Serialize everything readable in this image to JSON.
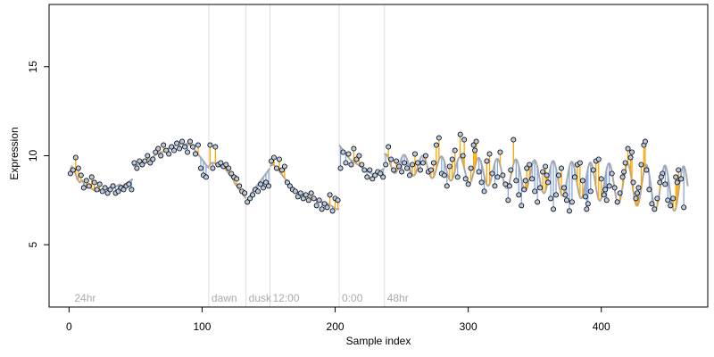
{
  "chart_data": {
    "type": "scatter",
    "title": "",
    "xlabel": "Sample index",
    "ylabel": "Expression",
    "xlim": [
      -15,
      480
    ],
    "ylim": [
      1.5,
      18.5
    ],
    "xticks": [
      0,
      100,
      200,
      300,
      400
    ],
    "yticks": [
      5,
      10,
      15
    ],
    "grid": false,
    "legend": "none",
    "colors": {
      "points_fill": "#b8c8e0",
      "points_stroke": "#000000",
      "fit_line": "#aaaaaa",
      "residual_positive": "#ffa500",
      "residual_negative": "#87a8e0",
      "markers": "#dddddd",
      "marker_text": "#aaaaaa"
    },
    "markers": [
      {
        "x": 2,
        "label": "24hr"
      },
      {
        "x": 105,
        "label": "dawn"
      },
      {
        "x": 133,
        "label": "dusk"
      },
      {
        "x": 151,
        "label": "12:00"
      },
      {
        "x": 203,
        "label": "0:00"
      },
      {
        "x": 237,
        "label": "48hr"
      }
    ],
    "segments": [
      {
        "x": [
          0,
          48
        ],
        "fit": [
          9.0,
          9.4,
          9.2,
          8.7,
          8.5,
          8.6,
          8.3,
          8.2,
          8.2,
          8.1,
          8.0,
          8.1,
          8.0,
          8.1,
          8.2,
          8.1,
          8.3,
          8.2,
          8.3,
          8.4,
          8.3,
          8.4,
          8.5,
          8.6,
          8.7
        ]
      },
      {
        "x": [
          48,
          105
        ],
        "fit": [
          9.4,
          9.5,
          9.5,
          9.6,
          9.7,
          9.8,
          9.8,
          9.9,
          10.0,
          10.1,
          10.2,
          10.2,
          10.3,
          10.4,
          10.5,
          10.5,
          10.6,
          10.6,
          10.7,
          10.6,
          10.7,
          10.6,
          10.5,
          10.3,
          10.1,
          9.9,
          9.7,
          9.5,
          9.3
        ]
      },
      {
        "x": [
          105,
          133
        ],
        "fit": [
          9.4,
          9.6,
          9.6,
          9.5,
          9.4,
          9.4,
          9.3,
          9.1,
          8.9,
          8.7,
          8.4,
          8.2,
          8.0,
          7.8,
          7.6
        ]
      },
      {
        "x": [
          133,
          151
        ],
        "fit": [
          7.4,
          7.6,
          7.9,
          8.1,
          8.3,
          8.5,
          8.7,
          8.9,
          9.1,
          9.3
        ]
      },
      {
        "x": [
          151,
          203
        ],
        "fit": [
          9.4,
          9.5,
          9.4,
          9.2,
          9.0,
          8.8,
          8.6,
          8.4,
          8.2,
          8.0,
          7.9,
          7.8,
          7.8,
          7.7,
          7.7,
          7.6,
          7.6,
          7.5,
          7.4,
          7.4,
          7.3,
          7.3,
          7.2,
          7.1,
          7.0,
          7.0
        ]
      },
      {
        "x": [
          203,
          237
        ],
        "fit": [
          10.6,
          10.4,
          10.2,
          10.0,
          9.8,
          9.7,
          9.6,
          9.5,
          9.4,
          9.3,
          9.2,
          9.1,
          9.0,
          9.0,
          9.0,
          9.1,
          9.2,
          9.3
        ]
      }
    ],
    "osc_fit": {
      "x_start": 237,
      "x_end": 465,
      "mean_start": 9.6,
      "mean_end": 8.1,
      "amp_start": 0.5,
      "amp_end": 1.3,
      "period": 14,
      "phase": 1.2
    },
    "points": [
      [
        1,
        9.0
      ],
      [
        3,
        9.2
      ],
      [
        5,
        9.9
      ],
      [
        7,
        9.3
      ],
      [
        9,
        8.9
      ],
      [
        11,
        8.2
      ],
      [
        13,
        8.6
      ],
      [
        15,
        8.3
      ],
      [
        17,
        8.8
      ],
      [
        19,
        8.5
      ],
      [
        21,
        8.1
      ],
      [
        23,
        8.4
      ],
      [
        25,
        8.0
      ],
      [
        27,
        8.2
      ],
      [
        29,
        7.9
      ],
      [
        31,
        8.1
      ],
      [
        33,
        8.3
      ],
      [
        35,
        7.9
      ],
      [
        37,
        8.0
      ],
      [
        39,
        8.2
      ],
      [
        41,
        8.1
      ],
      [
        43,
        8.3
      ],
      [
        45,
        8.4
      ],
      [
        47,
        8.1
      ],
      [
        49,
        9.6
      ],
      [
        51,
        9.3
      ],
      [
        53,
        9.7
      ],
      [
        55,
        9.5
      ],
      [
        57,
        9.7
      ],
      [
        59,
        10.0
      ],
      [
        61,
        9.6
      ],
      [
        63,
        9.8
      ],
      [
        65,
        10.2
      ],
      [
        67,
        10.4
      ],
      [
        69,
        10.0
      ],
      [
        71,
        10.6
      ],
      [
        73,
        10.3
      ],
      [
        75,
        10.1
      ],
      [
        77,
        10.5
      ],
      [
        79,
        10.3
      ],
      [
        81,
        10.7
      ],
      [
        83,
        10.4
      ],
      [
        85,
        10.8
      ],
      [
        87,
        10.5
      ],
      [
        89,
        10.2
      ],
      [
        91,
        10.8
      ],
      [
        93,
        10.5
      ],
      [
        95,
        10.1
      ],
      [
        97,
        10.6
      ],
      [
        99,
        9.3
      ],
      [
        101,
        8.9
      ],
      [
        103,
        8.8
      ],
      [
        106,
        10.6
      ],
      [
        108,
        9.3
      ],
      [
        110,
        10.5
      ],
      [
        112,
        9.5
      ],
      [
        114,
        9.6
      ],
      [
        116,
        9.4
      ],
      [
        118,
        9.5
      ],
      [
        120,
        9.3
      ],
      [
        122,
        9.0
      ],
      [
        124,
        8.8
      ],
      [
        126,
        8.7
      ],
      [
        128,
        8.3
      ],
      [
        130,
        8.0
      ],
      [
        132,
        7.9
      ],
      [
        134,
        7.4
      ],
      [
        136,
        7.6
      ],
      [
        138,
        7.8
      ],
      [
        140,
        8.1
      ],
      [
        142,
        8.0
      ],
      [
        144,
        8.4
      ],
      [
        146,
        8.2
      ],
      [
        148,
        8.5
      ],
      [
        150,
        8.3
      ],
      [
        152,
        9.7
      ],
      [
        154,
        9.9
      ],
      [
        156,
        9.3
      ],
      [
        158,
        9.8
      ],
      [
        160,
        9.2
      ],
      [
        162,
        9.4
      ],
      [
        164,
        8.5
      ],
      [
        166,
        8.3
      ],
      [
        168,
        8.1
      ],
      [
        170,
        8.0
      ],
      [
        172,
        7.7
      ],
      [
        174,
        7.9
      ],
      [
        176,
        7.6
      ],
      [
        178,
        7.8
      ],
      [
        180,
        7.5
      ],
      [
        182,
        7.9
      ],
      [
        184,
        7.6
      ],
      [
        186,
        7.2
      ],
      [
        188,
        7.5
      ],
      [
        190,
        7.0
      ],
      [
        192,
        7.3
      ],
      [
        194,
        7.1
      ],
      [
        196,
        7.8
      ],
      [
        198,
        6.9
      ],
      [
        200,
        7.6
      ],
      [
        202,
        7.5
      ],
      [
        204,
        9.3
      ],
      [
        206,
        10.2
      ],
      [
        208,
        9.6
      ],
      [
        210,
        10.1
      ],
      [
        212,
        9.5
      ],
      [
        214,
        10.4
      ],
      [
        216,
        9.8
      ],
      [
        218,
        10.0
      ],
      [
        220,
        9.5
      ],
      [
        222,
        9.2
      ],
      [
        224,
        8.8
      ],
      [
        226,
        9.2
      ],
      [
        228,
        8.7
      ],
      [
        230,
        8.9
      ],
      [
        232,
        9.1
      ],
      [
        234,
        9.0
      ],
      [
        236,
        8.8
      ],
      [
        238,
        9.5
      ],
      [
        240,
        10.5
      ],
      [
        242,
        9.8
      ],
      [
        244,
        9.2
      ],
      [
        246,
        9.7
      ],
      [
        248,
        9.4
      ],
      [
        250,
        9.1
      ],
      [
        252,
        9.6
      ],
      [
        254,
        9.3
      ],
      [
        256,
        8.9
      ],
      [
        258,
        9.5
      ],
      [
        260,
        10.1
      ],
      [
        262,
        9.6
      ],
      [
        264,
        9.2
      ],
      [
        266,
        9.6
      ],
      [
        268,
        10.0
      ],
      [
        270,
        9.1
      ],
      [
        272,
        9.2
      ],
      [
        274,
        9.6
      ],
      [
        276,
        10.6
      ],
      [
        278,
        11.0
      ],
      [
        280,
        9.0
      ],
      [
        282,
        8.9
      ],
      [
        284,
        8.3
      ],
      [
        286,
        9.4
      ],
      [
        288,
        9.8
      ],
      [
        290,
        10.3
      ],
      [
        292,
        8.8
      ],
      [
        294,
        11.2
      ],
      [
        296,
        10.0
      ],
      [
        298,
        8.7
      ],
      [
        300,
        8.4
      ],
      [
        302,
        9.3
      ],
      [
        304,
        10.6
      ],
      [
        306,
        10.8
      ],
      [
        308,
        9.1
      ],
      [
        310,
        8.5
      ],
      [
        312,
        8.0
      ],
      [
        314,
        9.7
      ],
      [
        316,
        10.1
      ],
      [
        318,
        9.0
      ],
      [
        320,
        8.3
      ],
      [
        322,
        8.8
      ],
      [
        324,
        10.2
      ],
      [
        326,
        8.9
      ],
      [
        328,
        8.4
      ],
      [
        330,
        7.5
      ],
      [
        332,
        9.2
      ],
      [
        334,
        10.9
      ],
      [
        336,
        8.6
      ],
      [
        338,
        7.8
      ],
      [
        340,
        7.2
      ],
      [
        342,
        8.1
      ],
      [
        344,
        9.3
      ],
      [
        346,
        9.5
      ],
      [
        348,
        8.7
      ],
      [
        350,
        8.0
      ],
      [
        352,
        7.4
      ],
      [
        354,
        8.2
      ],
      [
        356,
        9.1
      ],
      [
        358,
        9.4
      ],
      [
        360,
        8.5
      ],
      [
        362,
        7.6
      ],
      [
        364,
        7.0
      ],
      [
        366,
        7.8
      ],
      [
        368,
        8.9
      ],
      [
        370,
        9.3
      ],
      [
        372,
        8.2
      ],
      [
        374,
        7.5
      ],
      [
        376,
        6.9
      ],
      [
        378,
        7.4
      ],
      [
        380,
        8.8
      ],
      [
        382,
        9.5
      ],
      [
        384,
        9.6
      ],
      [
        386,
        8.6
      ],
      [
        388,
        7.7
      ],
      [
        390,
        7.3
      ],
      [
        392,
        8.0
      ],
      [
        394,
        9.2
      ],
      [
        396,
        9.7
      ],
      [
        398,
        9.8
      ],
      [
        400,
        8.7
      ],
      [
        402,
        7.8
      ],
      [
        404,
        7.5
      ],
      [
        406,
        8.3
      ],
      [
        408,
        9.0
      ],
      [
        410,
        8.2
      ],
      [
        412,
        7.4
      ],
      [
        414,
        7.9
      ],
      [
        416,
        8.8
      ],
      [
        418,
        9.6
      ],
      [
        420,
        10.4
      ],
      [
        422,
        9.9
      ],
      [
        424,
        8.5
      ],
      [
        426,
        7.6
      ],
      [
        428,
        8.2
      ],
      [
        430,
        9.5
      ],
      [
        432,
        10.6
      ],
      [
        434,
        9.2
      ],
      [
        436,
        8.1
      ],
      [
        438,
        7.3
      ],
      [
        440,
        7.0
      ],
      [
        442,
        7.6
      ],
      [
        444,
        8.5
      ],
      [
        446,
        9.0
      ],
      [
        448,
        8.4
      ],
      [
        450,
        7.5
      ],
      [
        452,
        7.2
      ],
      [
        454,
        7.6
      ],
      [
        456,
        8.8
      ],
      [
        458,
        9.2
      ],
      [
        460,
        8.7
      ],
      [
        462,
        7.1
      ],
      [
        297,
        10.9
      ],
      [
        305,
        10.3
      ],
      [
        331,
        8.3
      ],
      [
        343,
        8.6
      ],
      [
        359,
        8.9
      ],
      [
        373,
        7.8
      ],
      [
        389,
        7.0
      ],
      [
        403,
        8.1
      ],
      [
        417,
        9.1
      ],
      [
        423,
        10.2
      ],
      [
        427,
        7.9
      ],
      [
        433,
        10.8
      ],
      [
        445,
        8.8
      ],
      [
        457,
        8.5
      ]
    ]
  }
}
